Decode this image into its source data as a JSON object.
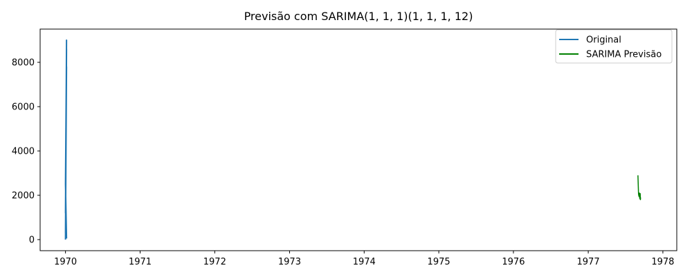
{
  "chart_data": {
    "type": "line",
    "title": "Previsão com SARIMA(1, 1, 1)(1, 1, 1, 12)",
    "xlabel": "",
    "ylabel": "",
    "xlim": [
      "1969-08-30",
      "1978-03-10"
    ],
    "ylim": [
      -500,
      9500
    ],
    "x_ticks": [
      "1970",
      "1971",
      "1972",
      "1973",
      "1974",
      "1975",
      "1976",
      "1977",
      "1978"
    ],
    "y_ticks": [
      0,
      2000,
      4000,
      6000,
      8000
    ],
    "grid": false,
    "legend_position": "top-right",
    "series": [
      {
        "name": "Original",
        "color": "#1f77b4",
        "x": [
          "1970-01-01",
          "1970-01-01",
          "1970-01-01",
          "1970-01-01",
          "1970-01-01",
          "1970-01-01",
          "1970-01-01",
          "1970-01-01"
        ],
        "y": [
          0,
          9000,
          1200,
          7800,
          300,
          8600,
          2500,
          50
        ]
      },
      {
        "name": "SARIMA Previsão",
        "color": "#008000",
        "x": [
          "1977-09-01",
          "1977-09-04",
          "1977-09-06",
          "1977-09-08",
          "1977-09-10",
          "1977-09-12",
          "1977-09-13",
          "1977-09-14"
        ],
        "y": [
          2900,
          2050,
          1950,
          2100,
          1850,
          2080,
          1800,
          1900
        ]
      }
    ]
  }
}
